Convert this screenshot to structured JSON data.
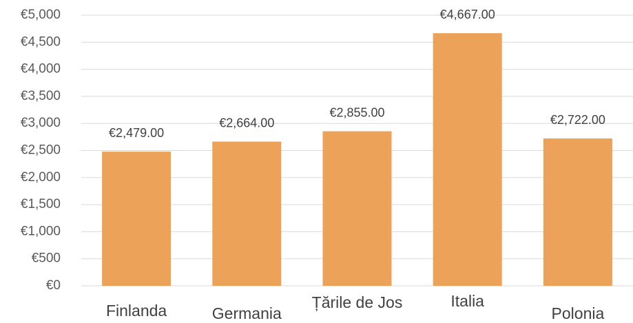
{
  "chart_data": {
    "type": "bar",
    "categories": [
      "Finlanda",
      "Germania",
      "Țările de Jos",
      "Italia",
      "Polonia"
    ],
    "values": [
      2479,
      2664,
      2855,
      4667,
      2722
    ],
    "value_labels": [
      "€2,479.00",
      "€2,664.00",
      "€2,855.00",
      "€4,667.00",
      "€2,722.00"
    ],
    "color": "#eda25a",
    "ylim": [
      0,
      5000
    ],
    "yticks": [
      {
        "value": 0,
        "label": "€0"
      },
      {
        "value": 500,
        "label": "€500"
      },
      {
        "value": 1000,
        "label": "€1,000"
      },
      {
        "value": 1500,
        "label": "€1,500"
      },
      {
        "value": 2000,
        "label": "€2,000"
      },
      {
        "value": 2500,
        "label": "€2,500"
      },
      {
        "value": 3000,
        "label": "€3,000"
      },
      {
        "value": 3500,
        "label": "€3,500"
      },
      {
        "value": 4000,
        "label": "€4,000"
      },
      {
        "value": 4500,
        "label": "€4,500"
      },
      {
        "value": 5000,
        "label": "€5,000"
      }
    ],
    "grid": true
  }
}
